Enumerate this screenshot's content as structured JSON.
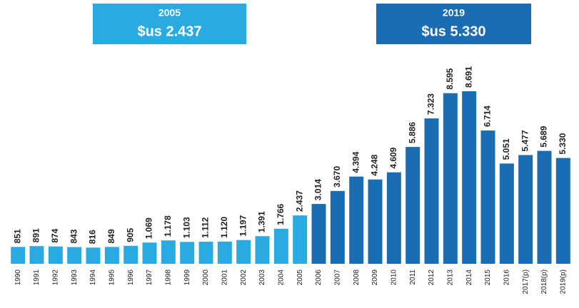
{
  "chart_data": {
    "type": "bar",
    "annotations": [
      {
        "title": "2005",
        "text": "$us 2.437",
        "color": "#29abe2"
      },
      {
        "title": "2019",
        "text": "$us 5.330",
        "color": "#1b6db3"
      }
    ],
    "categories": [
      "1990",
      "1991",
      "1992",
      "1993",
      "1994",
      "1995",
      "1996",
      "1997",
      "1998",
      "1999",
      "2000",
      "2001",
      "2002",
      "2003",
      "2004",
      "2005",
      "2006",
      "2007",
      "2008",
      "2009",
      "2010",
      "2011",
      "2012",
      "2013",
      "2014",
      "2015",
      "2016",
      "2017(p)",
      "2018(p)",
      "2019(p)"
    ],
    "values": [
      851,
      891,
      874,
      843,
      816,
      849,
      905,
      1069,
      1178,
      1103,
      1112,
      1120,
      1197,
      1391,
      1766,
      2437,
      3014,
      3670,
      4394,
      4248,
      4609,
      5886,
      7323,
      8595,
      8691,
      6714,
      5051,
      5477,
      5689,
      5330
    ],
    "value_labels": [
      "851",
      "891",
      "874",
      "843",
      "816",
      "849",
      "905",
      "1.069",
      "1.178",
      "1.103",
      "1.112",
      "1.120",
      "1.197",
      "1.391",
      "1.766",
      "2.437",
      "3.014",
      "3.670",
      "4.394",
      "4.248",
      "4.609",
      "5.886",
      "7.323",
      "8.595",
      "8.691",
      "6.714",
      "5.051",
      "5.477",
      "5.689",
      "5.330"
    ],
    "colors": [
      "#29abe2",
      "#29abe2",
      "#29abe2",
      "#29abe2",
      "#29abe2",
      "#29abe2",
      "#29abe2",
      "#29abe2",
      "#29abe2",
      "#29abe2",
      "#29abe2",
      "#29abe2",
      "#29abe2",
      "#29abe2",
      "#29abe2",
      "#29abe2",
      "#1b6db3",
      "#1b6db3",
      "#1b6db3",
      "#1b6db3",
      "#1b6db3",
      "#1b6db3",
      "#1b6db3",
      "#1b6db3",
      "#1b6db3",
      "#1b6db3",
      "#1b6db3",
      "#1b6db3",
      "#1b6db3",
      "#1b6db3"
    ]
  }
}
